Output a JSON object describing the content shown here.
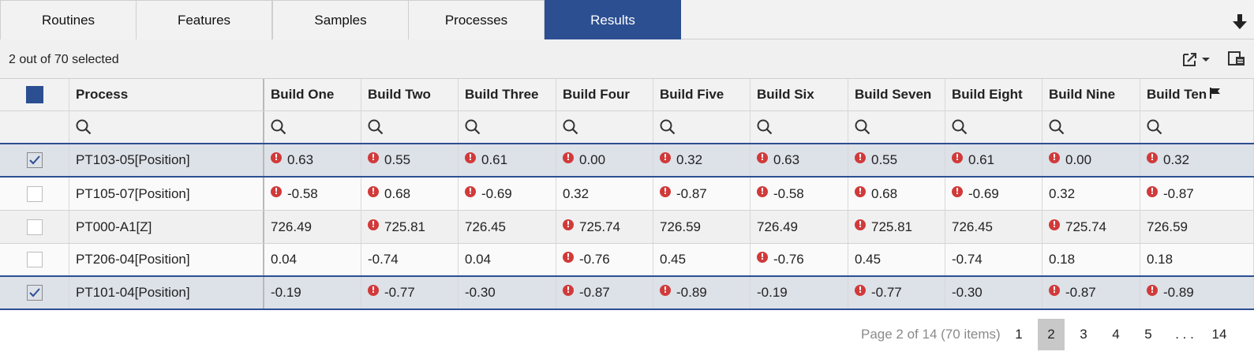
{
  "tabs": [
    {
      "label": "Routines",
      "active": false
    },
    {
      "label": "Features",
      "active": false
    },
    {
      "label": "Samples",
      "active": false
    },
    {
      "label": "Processes",
      "active": false
    },
    {
      "label": "Results",
      "active": true
    }
  ],
  "toolbar": {
    "selection_text": "2 out of 70 selected",
    "download_icon": "arrow-down-icon",
    "export_icon": "export-icon",
    "columns_icon": "column-chooser-icon"
  },
  "grid": {
    "columns": [
      "Process",
      "Build One",
      "Build Two",
      "Build Three",
      "Build Four",
      "Build Five",
      "Build Six",
      "Build Seven",
      "Build Eight",
      "Build Nine",
      "Build Ten"
    ],
    "rows": [
      {
        "selected": true,
        "process": "PT103-05[Position]",
        "values": [
          {
            "v": "0.63",
            "w": true
          },
          {
            "v": "0.55",
            "w": true
          },
          {
            "v": "0.61",
            "w": true
          },
          {
            "v": "0.00",
            "w": true
          },
          {
            "v": "0.32",
            "w": true
          },
          {
            "v": "0.63",
            "w": true
          },
          {
            "v": "0.55",
            "w": true
          },
          {
            "v": "0.61",
            "w": true
          },
          {
            "v": "0.00",
            "w": true
          },
          {
            "v": "0.32",
            "w": true
          }
        ]
      },
      {
        "selected": false,
        "process": "PT105-07[Position]",
        "values": [
          {
            "v": "-0.58",
            "w": true
          },
          {
            "v": "0.68",
            "w": true
          },
          {
            "v": "-0.69",
            "w": true
          },
          {
            "v": "0.32",
            "w": false
          },
          {
            "v": "-0.87",
            "w": true
          },
          {
            "v": "-0.58",
            "w": true
          },
          {
            "v": "0.68",
            "w": true
          },
          {
            "v": "-0.69",
            "w": true
          },
          {
            "v": "0.32",
            "w": false
          },
          {
            "v": "-0.87",
            "w": true
          }
        ]
      },
      {
        "selected": false,
        "process": "PT000-A1[Z]",
        "values": [
          {
            "v": "726.49",
            "w": false
          },
          {
            "v": "725.81",
            "w": true
          },
          {
            "v": "726.45",
            "w": false
          },
          {
            "v": "725.74",
            "w": true
          },
          {
            "v": "726.59",
            "w": false
          },
          {
            "v": "726.49",
            "w": false
          },
          {
            "v": "725.81",
            "w": true
          },
          {
            "v": "726.45",
            "w": false
          },
          {
            "v": "725.74",
            "w": true
          },
          {
            "v": "726.59",
            "w": false
          }
        ]
      },
      {
        "selected": false,
        "process": "PT206-04[Position]",
        "values": [
          {
            "v": "0.04",
            "w": false
          },
          {
            "v": "-0.74",
            "w": false
          },
          {
            "v": "0.04",
            "w": false
          },
          {
            "v": "-0.76",
            "w": true
          },
          {
            "v": "0.45",
            "w": false
          },
          {
            "v": "-0.76",
            "w": true
          },
          {
            "v": "0.45",
            "w": false
          },
          {
            "v": "-0.74",
            "w": false
          },
          {
            "v": "0.18",
            "w": false
          },
          {
            "v": "0.18",
            "w": false
          }
        ]
      },
      {
        "selected": true,
        "process": "PT101-04[Position]",
        "values": [
          {
            "v": "-0.19",
            "w": false
          },
          {
            "v": "-0.77",
            "w": true
          },
          {
            "v": "-0.30",
            "w": false
          },
          {
            "v": "-0.87",
            "w": true
          },
          {
            "v": "-0.89",
            "w": true
          },
          {
            "v": "-0.19",
            "w": false
          },
          {
            "v": "-0.77",
            "w": true
          },
          {
            "v": "-0.30",
            "w": false
          },
          {
            "v": "-0.87",
            "w": true
          },
          {
            "v": "-0.89",
            "w": true
          }
        ]
      }
    ]
  },
  "pager": {
    "info": "Page 2 of 14 (70 items)",
    "pages": [
      "1",
      "2",
      "3",
      "4",
      "5",
      ". . .",
      "14"
    ],
    "current": "2"
  },
  "colors": {
    "accent": "#2c4f91",
    "warning": "#d13a3a"
  }
}
